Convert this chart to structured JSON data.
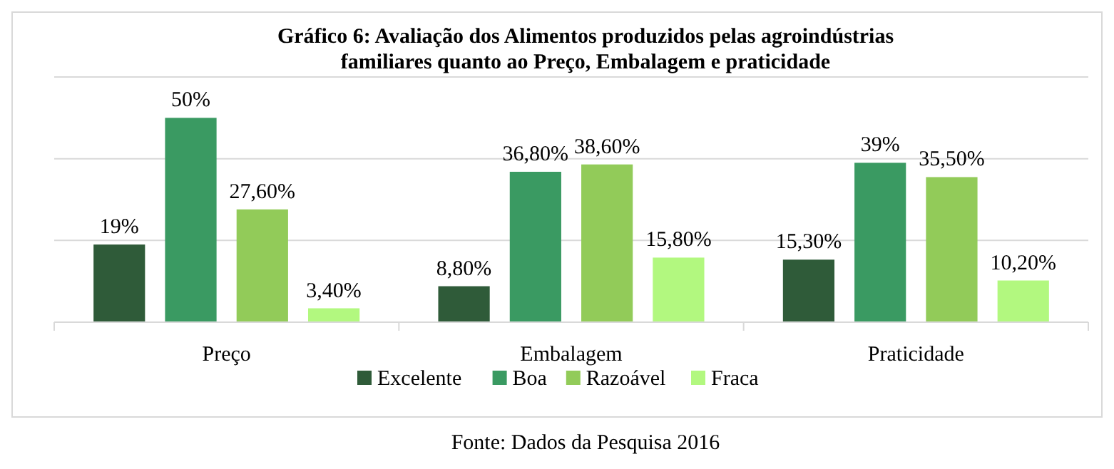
{
  "chart_data": {
    "type": "bar",
    "title": "Gráfico 6: Avaliação dos Alimentos produzidos pelas agroindústrias familiares quanto ao Preço, Embalagem e praticidade",
    "categories": [
      "Preço",
      "Embalagem",
      "Praticidade"
    ],
    "series": [
      {
        "name": "Excelente",
        "color": "#2f5b39",
        "values": [
          19,
          8.8,
          15.3
        ],
        "value_labels": [
          "19%",
          "8,80%",
          "15,30%"
        ]
      },
      {
        "name": "Boa",
        "color": "#3a9a62",
        "values": [
          50,
          36.8,
          39
        ],
        "value_labels": [
          "50%",
          "36,80%",
          "39%"
        ]
      },
      {
        "name": "Razoável",
        "color": "#92cb59",
        "values": [
          27.6,
          38.6,
          35.5
        ],
        "value_labels": [
          "27,60%",
          "38,60%",
          "35,50%"
        ]
      },
      {
        "name": "Fraca",
        "color": "#b2f87f",
        "values": [
          3.4,
          15.8,
          10.2
        ],
        "value_labels": [
          "3,40%",
          "15,80%",
          "10,20%"
        ]
      }
    ],
    "ylim": [
      0,
      60
    ],
    "yticks": [
      {
        "value": 0,
        "label": null
      },
      {
        "value": 20,
        "label": null
      },
      {
        "value": 40,
        "label": null
      },
      {
        "value": 60,
        "label": null
      }
    ],
    "tick_labels": "x",
    "grid": "y",
    "legend": "bottom",
    "annotations": [
      "Fonte: Dados da Pesquisa 2016"
    ]
  }
}
